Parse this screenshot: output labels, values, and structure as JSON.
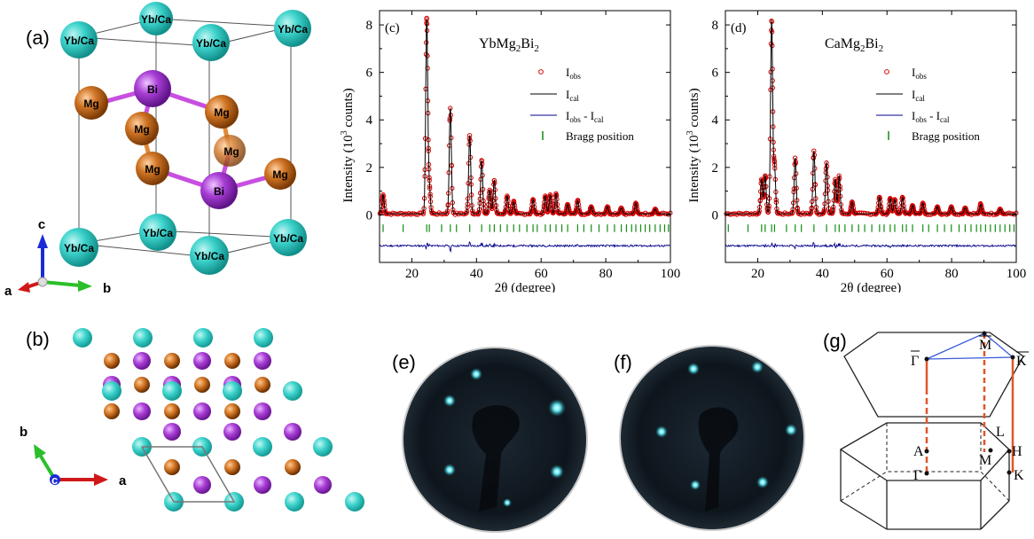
{
  "figure": {
    "panel_labels": {
      "a": "(a)",
      "b": "(b)",
      "c": "(c)",
      "d": "(d)",
      "e": "(e)",
      "f": "(f)",
      "g": "(g)"
    }
  },
  "panel_a": {
    "atom_labels": {
      "site": "Yb/Ca",
      "bi": "Bi",
      "mg": "Mg"
    },
    "axes": {
      "a": "a",
      "b": "b",
      "c": "c"
    }
  },
  "panel_b": {
    "axes": {
      "a": "a",
      "b": "b",
      "c": "c"
    }
  },
  "legend_text": {
    "obs_main": "I",
    "obs_sub": "obs",
    "cal_main": "I",
    "cal_sub": "cal",
    "diff_main1": "I",
    "diff_sub1": "obs",
    "diff_mid": " - I",
    "diff_sub2": "cal",
    "bragg": "Bragg position"
  },
  "panel_g": {
    "surface_points": {
      "gamma": "Γ",
      "m": "M",
      "k": "K"
    },
    "bulk_points": {
      "a": "A",
      "l": "L",
      "m": "M",
      "h": "H",
      "gamma": "Γ",
      "k": "K"
    }
  },
  "colors": {
    "site_atom": "#3dd3cc",
    "bi_atom": "#a93ed6",
    "mg_atom": "#d07424",
    "obs": "#d40000",
    "cal": "#000000",
    "diff": "#00008b",
    "bragg": "#128c12",
    "bz_line": "#e0562a",
    "bz_surface_line": "#3a5bd9"
  },
  "chart_data": [
    {
      "id": "c",
      "type": "line",
      "compound": {
        "pre": "YbMg",
        "sub1": "2",
        "mid": "Bi",
        "sub2": "2"
      },
      "xlabel": "2θ (degree)",
      "ylabel": {
        "pre": "Intensity (10",
        "sup": "3",
        "post": " counts)"
      },
      "xlim": [
        10,
        100
      ],
      "ylim": [
        -2,
        8.6
      ],
      "xticks": [
        "20",
        "40",
        "60",
        "80",
        "100"
      ],
      "yticks": [
        "0",
        "2",
        "4",
        "6",
        "8"
      ],
      "background": 0.05,
      "diff_offset": -1.3,
      "peaks": [
        {
          "x": 11.1,
          "y": 0.8
        },
        {
          "x": 24.6,
          "y": 8.15
        },
        {
          "x": 25.4,
          "y": 1.1
        },
        {
          "x": 31.9,
          "y": 4.45
        },
        {
          "x": 37.9,
          "y": 3.3
        },
        {
          "x": 41.6,
          "y": 2.25
        },
        {
          "x": 44.1,
          "y": 1.0
        },
        {
          "x": 45.5,
          "y": 1.4
        },
        {
          "x": 49.5,
          "y": 0.75
        },
        {
          "x": 51.5,
          "y": 0.5
        },
        {
          "x": 57.5,
          "y": 0.6
        },
        {
          "x": 61.3,
          "y": 0.75
        },
        {
          "x": 62.8,
          "y": 0.8
        },
        {
          "x": 64.6,
          "y": 0.85
        },
        {
          "x": 68.2,
          "y": 0.4
        },
        {
          "x": 71.3,
          "y": 0.55
        },
        {
          "x": 75.5,
          "y": 0.3
        },
        {
          "x": 80.5,
          "y": 0.3
        },
        {
          "x": 84.8,
          "y": 0.25
        },
        {
          "x": 89.3,
          "y": 0.45
        },
        {
          "x": 95.3,
          "y": 0.2
        }
      ],
      "bragg_positions": [
        11.1,
        17.3,
        24.6,
        25.4,
        29.2,
        31.9,
        33.8,
        37.9,
        41.6,
        44.1,
        45.5,
        47.4,
        49.5,
        51.5,
        53.3,
        55.6,
        57.5,
        58.8,
        61.3,
        62.8,
        64.6,
        66.4,
        68.2,
        71.3,
        73.2,
        75.5,
        77.9,
        80.5,
        82.7,
        84.8,
        86.4,
        88.0,
        89.3,
        90.8,
        92.2,
        93.6,
        95.3,
        96.8,
        98.2,
        99.4
      ],
      "legend": [
        "Iobs",
        "Ical",
        "Iobs - Ical",
        "Bragg position"
      ]
    },
    {
      "id": "d",
      "type": "line",
      "compound": {
        "pre": "CaMg",
        "sub1": "2",
        "mid": "Bi",
        "sub2": "2"
      },
      "xlabel": "2θ (degree)",
      "ylabel": {
        "pre": "Intensity (10",
        "sup": "3",
        "post": " counts)"
      },
      "xlim": [
        10,
        100
      ],
      "ylim": [
        -2,
        8.6
      ],
      "xticks": [
        "20",
        "40",
        "60",
        "80",
        "100"
      ],
      "yticks": [
        "0",
        "2",
        "4",
        "6",
        "8"
      ],
      "background": 0.05,
      "diff_offset": -1.3,
      "peaks": [
        {
          "x": 21.2,
          "y": 1.45
        },
        {
          "x": 22.3,
          "y": 1.6
        },
        {
          "x": 24.3,
          "y": 8.1
        },
        {
          "x": 25.2,
          "y": 2.0
        },
        {
          "x": 31.6,
          "y": 2.35
        },
        {
          "x": 37.4,
          "y": 2.65
        },
        {
          "x": 41.3,
          "y": 2.15
        },
        {
          "x": 44.0,
          "y": 1.45
        },
        {
          "x": 45.2,
          "y": 1.6
        },
        {
          "x": 49.2,
          "y": 0.5
        },
        {
          "x": 57.7,
          "y": 0.7
        },
        {
          "x": 61.0,
          "y": 0.65
        },
        {
          "x": 62.4,
          "y": 0.6
        },
        {
          "x": 64.8,
          "y": 0.7
        },
        {
          "x": 67.9,
          "y": 0.35
        },
        {
          "x": 71.1,
          "y": 0.45
        },
        {
          "x": 75.6,
          "y": 0.3
        },
        {
          "x": 79.9,
          "y": 0.3
        },
        {
          "x": 84.2,
          "y": 0.25
        },
        {
          "x": 89.0,
          "y": 0.4
        },
        {
          "x": 95.0,
          "y": 0.2
        }
      ],
      "bragg_positions": [
        10.9,
        17.0,
        21.2,
        22.3,
        24.3,
        25.2,
        28.9,
        31.6,
        33.5,
        37.4,
        41.3,
        44.0,
        45.2,
        47.0,
        49.2,
        51.2,
        53.1,
        55.3,
        57.7,
        59.1,
        61.0,
        62.4,
        64.8,
        66.0,
        67.9,
        71.1,
        72.9,
        75.6,
        77.8,
        79.9,
        82.3,
        84.2,
        86.0,
        87.7,
        89.0,
        90.5,
        92.0,
        93.5,
        95.0,
        96.5,
        98.0,
        99.3
      ],
      "legend": [
        "Iobs",
        "Ical",
        "Iobs - Ical",
        "Bragg position"
      ]
    }
  ]
}
